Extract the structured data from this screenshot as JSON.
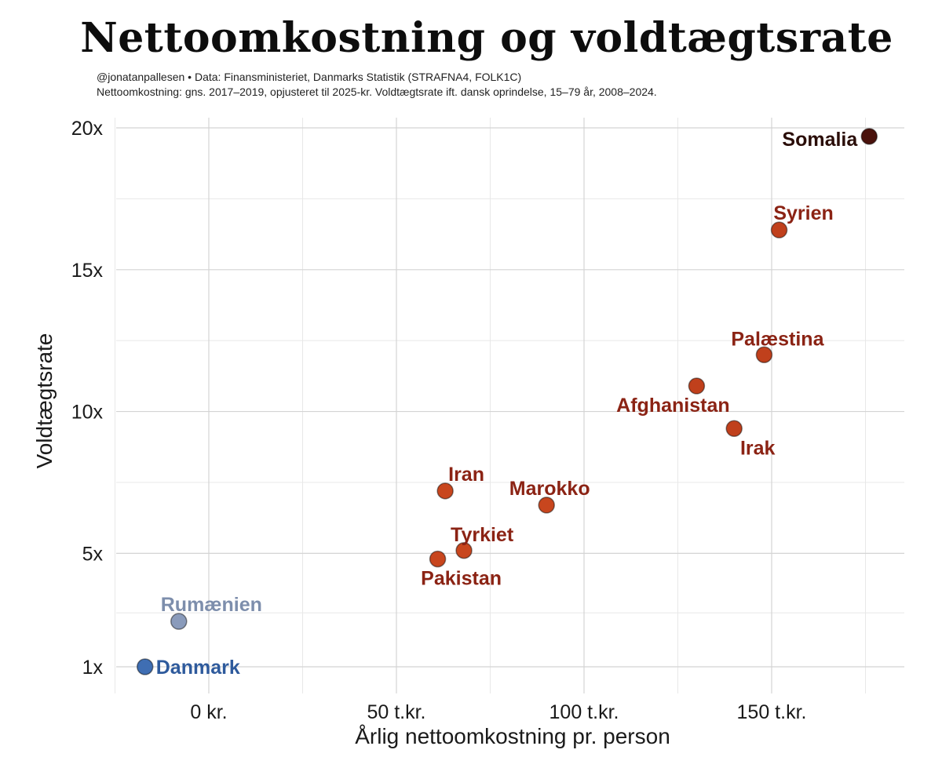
{
  "header": {
    "title": "Nettoomkostning og voldtægtsrate",
    "source": "@jonatanpallesen • Data: Finansministeriet, Danmarks Statistik (STRAFNA4, FOLK1C)",
    "note": "Nettoomkostning: gns. 2017–2019, opjusteret til 2025-kr. Voldtægtsrate ift. dansk oprindelse, 15–79 år, 2008–2024."
  },
  "chart_data": {
    "type": "scatter",
    "xlabel": "Årlig nettoomkostning pr. person",
    "ylabel": "Voldtægtsrate",
    "xlim": [
      -25,
      185
    ],
    "ylim": [
      0.3,
      20.3
    ],
    "x_ticks": [
      {
        "value": 0,
        "label": "0 kr."
      },
      {
        "value": 50,
        "label": "50 t.kr."
      },
      {
        "value": 100,
        "label": "100 t.kr."
      },
      {
        "value": 150,
        "label": "150 t.kr."
      }
    ],
    "y_ticks": [
      {
        "value": 1,
        "label": "1x"
      },
      {
        "value": 5,
        "label": "5x"
      },
      {
        "value": 10,
        "label": "10x"
      },
      {
        "value": 15,
        "label": "15x"
      },
      {
        "value": 20,
        "label": "20x"
      }
    ],
    "grid": true,
    "points": [
      {
        "label": "Danmark",
        "x": -17,
        "y": 1.0,
        "color": "#3f6eb3",
        "label_color": "#2e5a9c"
      },
      {
        "label": "Rumænien",
        "x": -8,
        "y": 2.6,
        "color": "#8a9bbb",
        "label_color": "#7d8eac"
      },
      {
        "label": "Pakistan",
        "x": 61,
        "y": 4.8,
        "color": "#c8461e",
        "label_color": "#8b2314"
      },
      {
        "label": "Tyrkiet",
        "x": 68,
        "y": 5.1,
        "color": "#c8461e",
        "label_color": "#8b2314"
      },
      {
        "label": "Iran",
        "x": 63,
        "y": 7.2,
        "color": "#c8461e",
        "label_color": "#8b2314"
      },
      {
        "label": "Marokko",
        "x": 90,
        "y": 6.7,
        "color": "#c8461e",
        "label_color": "#8b2314"
      },
      {
        "label": "Afghanistan",
        "x": 130,
        "y": 10.9,
        "color": "#c0401c",
        "label_color": "#8b2314"
      },
      {
        "label": "Irak",
        "x": 140,
        "y": 9.4,
        "color": "#c0401c",
        "label_color": "#8b2314"
      },
      {
        "label": "Palæstina",
        "x": 148,
        "y": 12.0,
        "color": "#c0401c",
        "label_color": "#8b2314"
      },
      {
        "label": "Syrien",
        "x": 152,
        "y": 16.4,
        "color": "#c0401c",
        "label_color": "#8b2314"
      },
      {
        "label": "Somalia",
        "x": 176,
        "y": 19.7,
        "color": "#4a120c",
        "label_color": "#2a0d08"
      }
    ]
  }
}
